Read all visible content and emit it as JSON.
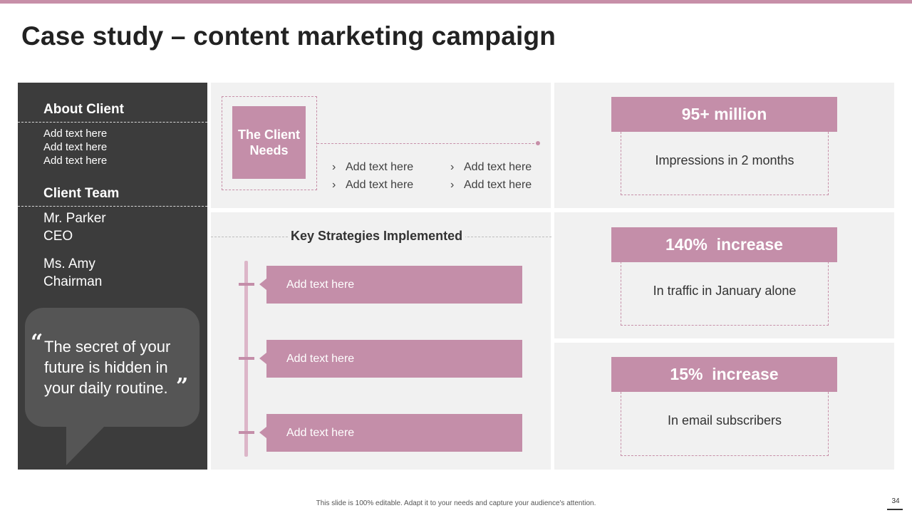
{
  "title": "Case study – content marketing campaign",
  "colors": {
    "accent": "#c48ea9",
    "dark_panel": "#3c3c3c",
    "light_panel": "#f1f1f1"
  },
  "about": {
    "heading": "About Client",
    "lines": [
      "Add text here",
      "Add text here",
      "Add text here"
    ]
  },
  "team": {
    "heading": "Client Team",
    "members": [
      {
        "name": "Mr. Parker",
        "role": "CEO"
      },
      {
        "name": "Ms. Amy",
        "role": "Chairman"
      }
    ]
  },
  "quote": {
    "open_mark": "“",
    "text": "The secret of your future is hidden in your daily routine.",
    "close_mark": "”"
  },
  "needs": {
    "label": "The Client Needs",
    "bullets": [
      "Add text here",
      "Add text here",
      "Add text here",
      "Add text here"
    ],
    "bullet_icon": "chevron-right-icon"
  },
  "strategies": {
    "title": "Key Strategies Implemented",
    "items": [
      "Add text here",
      "Add text here",
      "Add text here"
    ]
  },
  "stats": [
    {
      "value": "95+ million",
      "description": "Impressions in 2 months"
    },
    {
      "value": "140%  increase",
      "description": "In traffic in January alone"
    },
    {
      "value": "15%  increase",
      "description": "In email subscribers"
    }
  ],
  "footer": {
    "note": "This slide is 100% editable. Adapt it to your needs and capture your audience's attention.",
    "page_number": "34"
  }
}
